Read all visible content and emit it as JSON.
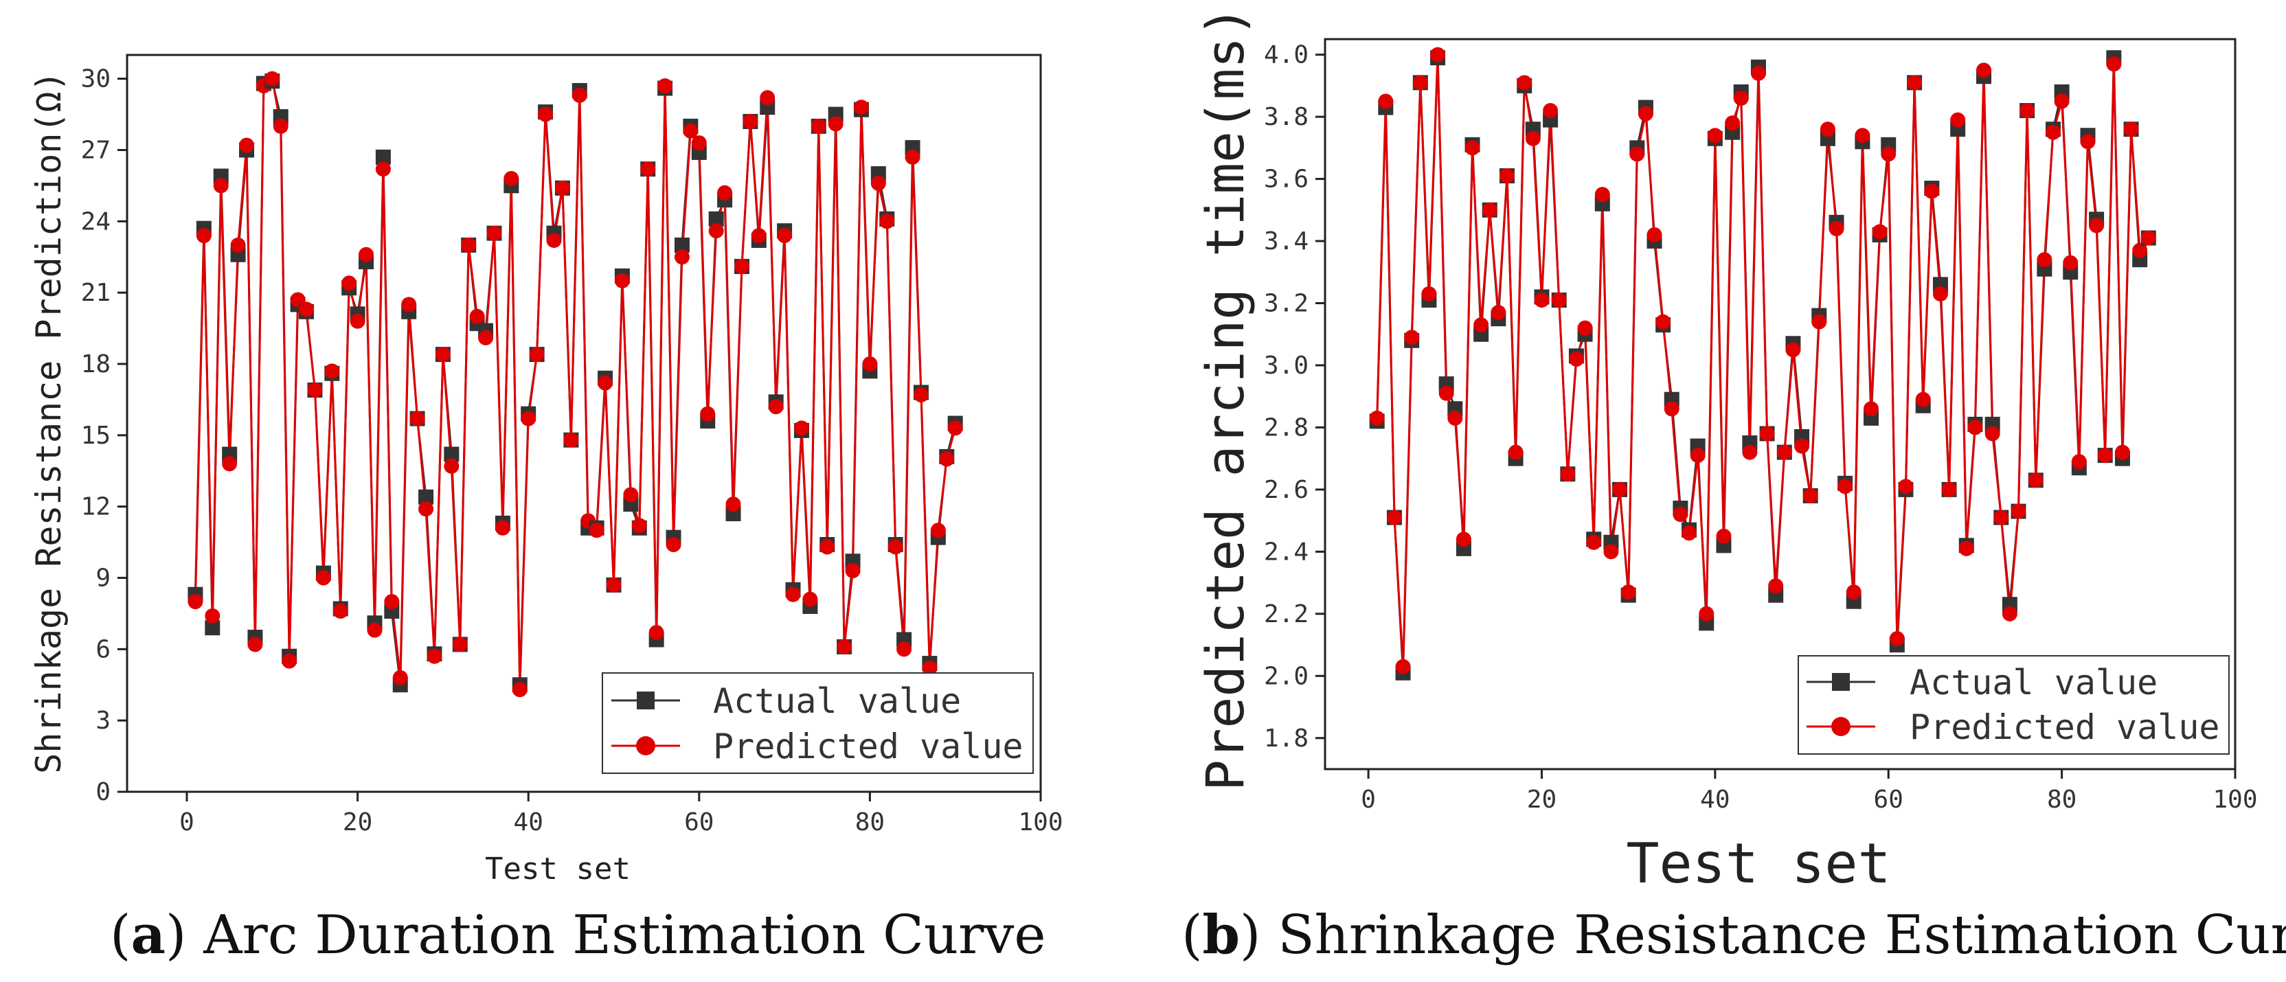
{
  "captions": {
    "a": {
      "letter": "a",
      "text": " Arc Duration Estimation Curve"
    },
    "b": {
      "letter": "b",
      "text": " Shrinkage Resistance Estimation Curve"
    }
  },
  "colors": {
    "actual": "#333333",
    "predicted": "#e00000"
  },
  "chart_data": [
    {
      "type": "line",
      "title": "",
      "xlabel": "Test set",
      "ylabel": "Shrinkage Resistance Prediction(Ω)",
      "xlim": [
        -7,
        100
      ],
      "ylim": [
        0,
        31
      ],
      "xticks": [
        0,
        20,
        40,
        60,
        80,
        100
      ],
      "yticks": [
        0,
        3,
        6,
        9,
        12,
        15,
        18,
        21,
        24,
        27,
        30
      ],
      "legend": [
        "Actual value",
        "Predicted value"
      ],
      "legend_position": "bottom-right",
      "x": [
        1,
        2,
        3,
        4,
        5,
        6,
        7,
        8,
        9,
        10,
        11,
        12,
        13,
        14,
        15,
        16,
        17,
        18,
        19,
        20,
        21,
        22,
        23,
        24,
        25,
        26,
        27,
        28,
        29,
        30,
        31,
        32,
        33,
        34,
        35,
        36,
        37,
        38,
        39,
        40,
        41,
        42,
        43,
        44,
        45,
        46,
        47,
        48,
        49,
        50,
        51,
        52,
        53,
        54,
        55,
        56,
        57,
        58,
        59,
        60,
        61,
        62,
        63,
        64,
        65,
        66,
        67,
        68,
        69,
        70,
        71,
        72,
        73,
        74,
        75,
        76,
        77,
        78,
        79,
        80,
        81,
        82,
        83,
        84,
        85,
        86,
        87,
        88,
        89,
        90
      ],
      "series": [
        {
          "name": "Actual value",
          "values": [
            8.3,
            23.7,
            6.9,
            25.9,
            14.2,
            22.6,
            27.0,
            6.5,
            29.8,
            29.9,
            28.4,
            5.7,
            20.5,
            20.2,
            16.9,
            9.2,
            17.6,
            7.7,
            21.2,
            20.1,
            22.3,
            7.1,
            26.7,
            7.6,
            4.5,
            20.2,
            15.7,
            12.4,
            5.8,
            18.4,
            14.2,
            6.2,
            23.0,
            19.7,
            19.4,
            23.5,
            11.3,
            25.5,
            4.5,
            15.9,
            18.4,
            28.6,
            23.5,
            25.4,
            14.8,
            29.5,
            11.1,
            11.1,
            17.4,
            8.7,
            21.7,
            12.1,
            11.1,
            26.2,
            6.4,
            29.6,
            10.7,
            23.0,
            28.0,
            26.9,
            15.6,
            24.1,
            24.9,
            11.7,
            22.1,
            28.2,
            23.2,
            28.8,
            16.4,
            23.6,
            8.5,
            15.2,
            7.8,
            28.0,
            10.4,
            28.5,
            6.1,
            9.7,
            28.7,
            17.7,
            26.0,
            24.1,
            10.4,
            6.4,
            27.1,
            16.8,
            5.4,
            10.7,
            14.1,
            15.5
          ]
        },
        {
          "name": "Predicted value",
          "values": [
            8.0,
            23.4,
            7.4,
            25.5,
            13.8,
            23.0,
            27.2,
            6.2,
            29.7,
            30.0,
            28.0,
            5.5,
            20.7,
            20.3,
            16.9,
            9.0,
            17.7,
            7.6,
            21.4,
            19.8,
            22.6,
            6.8,
            26.2,
            8.0,
            4.8,
            20.5,
            15.7,
            11.9,
            5.7,
            18.4,
            13.7,
            6.2,
            23.0,
            20.0,
            19.1,
            23.5,
            11.1,
            25.8,
            4.3,
            15.7,
            18.4,
            28.5,
            23.2,
            25.4,
            14.8,
            29.3,
            11.4,
            11.0,
            17.2,
            8.7,
            21.5,
            12.5,
            11.2,
            26.2,
            6.7,
            29.7,
            10.4,
            22.5,
            27.8,
            27.3,
            15.9,
            23.6,
            25.2,
            12.1,
            22.1,
            28.2,
            23.4,
            29.2,
            16.2,
            23.4,
            8.3,
            15.3,
            8.1,
            28.0,
            10.3,
            28.1,
            6.1,
            9.3,
            28.8,
            18.0,
            25.6,
            24.0,
            10.3,
            6.0,
            26.7,
            16.7,
            5.2,
            11.0,
            14.0,
            15.3
          ]
        }
      ]
    },
    {
      "type": "line",
      "title": "",
      "xlabel": "Test set",
      "ylabel": "Predicted arcing time(ms)",
      "xlim": [
        -5,
        100
      ],
      "ylim": [
        1.7,
        4.05
      ],
      "xticks": [
        0,
        20,
        40,
        60,
        80,
        100
      ],
      "yticks": [
        1.8,
        2.0,
        2.2,
        2.4,
        2.6,
        2.8,
        3.0,
        3.2,
        3.4,
        3.6,
        3.8,
        4.0
      ],
      "legend": [
        "Actual value",
        "Predicted value"
      ],
      "legend_position": "bottom-right",
      "x": [
        1,
        2,
        3,
        4,
        5,
        6,
        7,
        8,
        9,
        10,
        11,
        12,
        13,
        14,
        15,
        16,
        17,
        18,
        19,
        20,
        21,
        22,
        23,
        24,
        25,
        26,
        27,
        28,
        29,
        30,
        31,
        32,
        33,
        34,
        35,
        36,
        37,
        38,
        39,
        40,
        41,
        42,
        43,
        44,
        45,
        46,
        47,
        48,
        49,
        50,
        51,
        52,
        53,
        54,
        55,
        56,
        57,
        58,
        59,
        60,
        61,
        62,
        63,
        64,
        65,
        66,
        67,
        68,
        69,
        70,
        71,
        72,
        73,
        74,
        75,
        76,
        77,
        78,
        79,
        80,
        81,
        82,
        83,
        84,
        85,
        86,
        87,
        88,
        89,
        90
      ],
      "series": [
        {
          "name": "Actual value",
          "values": [
            2.82,
            3.83,
            2.51,
            2.01,
            3.08,
            3.91,
            3.21,
            3.99,
            2.94,
            2.86,
            2.41,
            3.71,
            3.1,
            3.5,
            3.15,
            3.61,
            2.7,
            3.9,
            3.76,
            3.22,
            3.79,
            3.21,
            2.65,
            3.03,
            3.1,
            2.44,
            3.52,
            2.43,
            2.6,
            2.26,
            3.7,
            3.83,
            3.4,
            3.13,
            2.89,
            2.54,
            2.47,
            2.74,
            2.17,
            3.73,
            2.42,
            3.75,
            3.88,
            2.75,
            3.96,
            2.78,
            2.26,
            2.72,
            3.07,
            2.77,
            2.58,
            3.16,
            3.73,
            3.46,
            2.62,
            2.24,
            3.72,
            2.83,
            3.42,
            3.71,
            2.1,
            2.6,
            3.91,
            2.87,
            3.57,
            3.26,
            2.6,
            3.76,
            2.42,
            2.81,
            3.93,
            2.81,
            2.51,
            2.23,
            2.53,
            3.82,
            2.63,
            3.31,
            3.76,
            3.88,
            3.3,
            2.67,
            3.74,
            3.47,
            2.71,
            3.99,
            2.7,
            3.76,
            3.34,
            3.41
          ]
        },
        {
          "name": "Predicted value",
          "values": [
            2.83,
            3.85,
            2.51,
            2.03,
            3.09,
            3.91,
            3.23,
            4.0,
            2.91,
            2.83,
            2.44,
            3.7,
            3.13,
            3.5,
            3.17,
            3.61,
            2.72,
            3.91,
            3.73,
            3.21,
            3.82,
            3.21,
            2.65,
            3.02,
            3.12,
            2.43,
            3.55,
            2.4,
            2.6,
            2.27,
            3.68,
            3.81,
            3.42,
            3.14,
            2.86,
            2.52,
            2.46,
            2.71,
            2.2,
            3.74,
            2.45,
            3.78,
            3.86,
            2.72,
            3.94,
            2.78,
            2.29,
            2.72,
            3.05,
            2.74,
            2.58,
            3.14,
            3.76,
            3.44,
            2.61,
            2.27,
            3.74,
            2.86,
            3.43,
            3.68,
            2.12,
            2.61,
            3.91,
            2.89,
            3.56,
            3.23,
            2.6,
            3.79,
            2.41,
            2.8,
            3.95,
            2.78,
            2.51,
            2.2,
            2.53,
            3.82,
            2.63,
            3.34,
            3.75,
            3.85,
            3.33,
            2.69,
            3.72,
            3.45,
            2.71,
            3.97,
            2.72,
            3.76,
            3.37,
            3.41
          ]
        }
      ]
    }
  ]
}
